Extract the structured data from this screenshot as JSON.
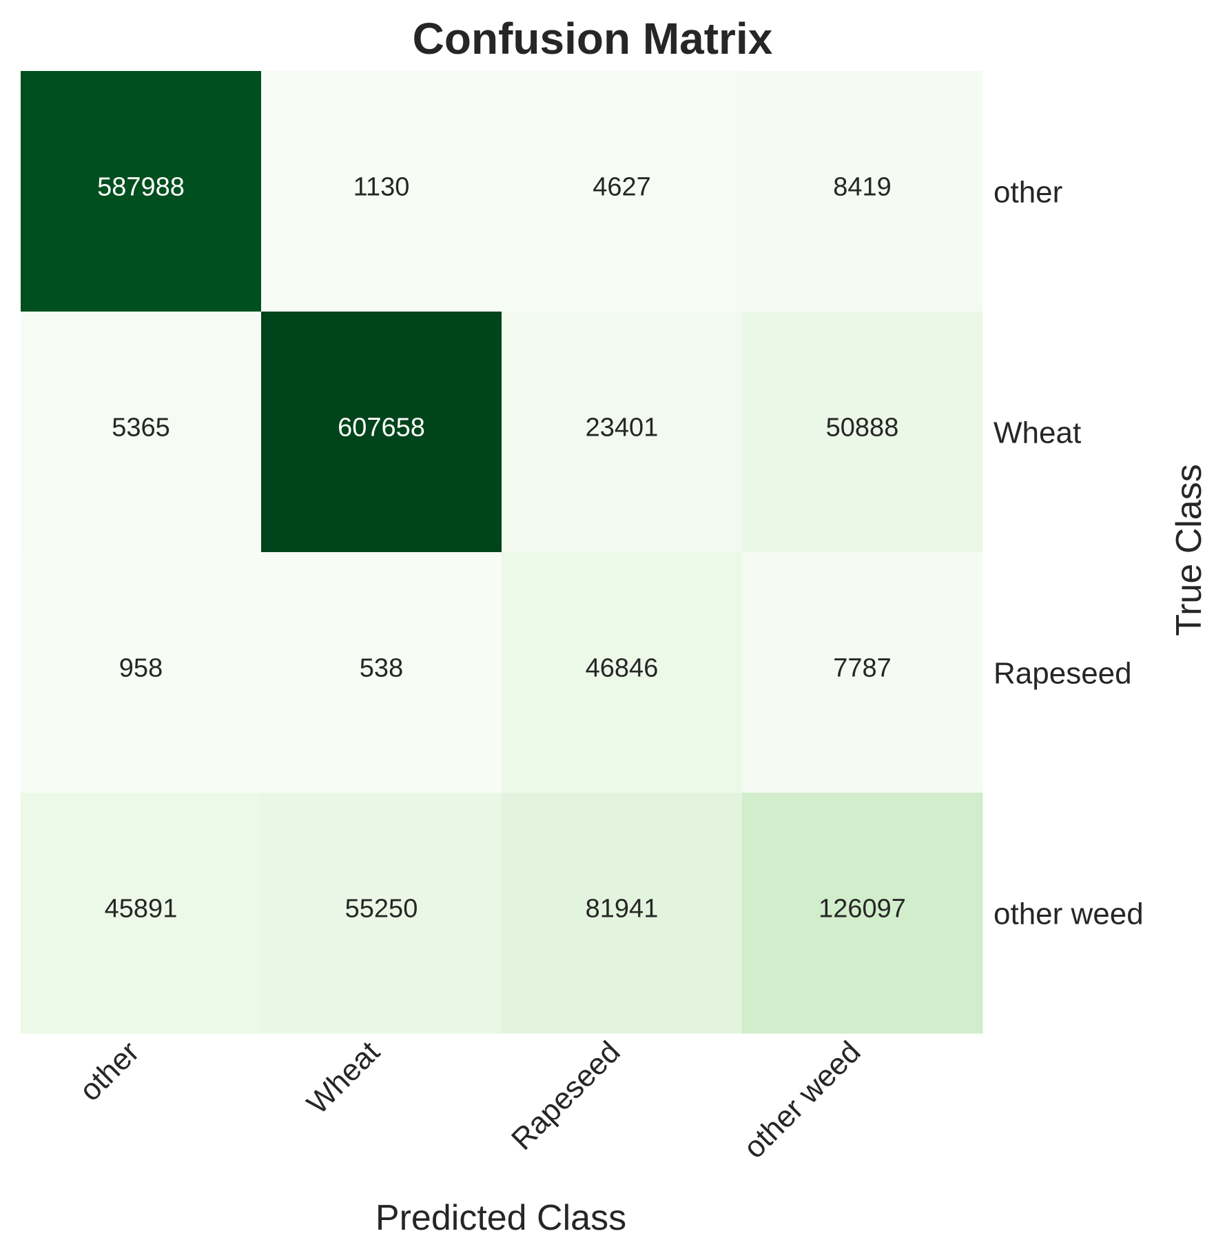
{
  "chart_data": {
    "type": "heatmap",
    "title": "Confusion Matrix",
    "xlabel": "Predicted Class",
    "ylabel": "True Class",
    "x_categories": [
      "other",
      "Wheat",
      "Rapeseed",
      "other weed"
    ],
    "y_categories": [
      "other",
      "Wheat",
      "Rapeseed",
      "other weed"
    ],
    "values": [
      [
        587988,
        1130,
        4627,
        8419
      ],
      [
        5365,
        607658,
        23401,
        50888
      ],
      [
        958,
        538,
        46846,
        7787
      ],
      [
        45891,
        55250,
        81941,
        126097
      ]
    ],
    "colormap": "Greens",
    "colorbar": false,
    "y_tick_position": "right",
    "x_tick_rotation": -45,
    "annotations": true,
    "grid": false
  },
  "colors": {
    "text_dark": "#262626",
    "text_light": "#ffffff",
    "cmap_low": "#f7fcf5",
    "cmap_high": "#00441b"
  }
}
